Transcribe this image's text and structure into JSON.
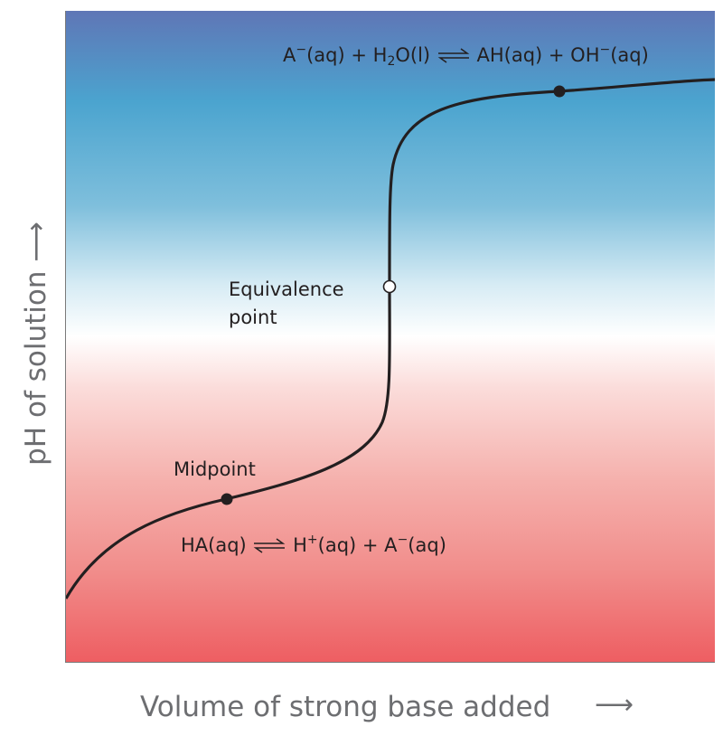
{
  "axes": {
    "x_label": "Volume of strong base added",
    "x_arrow": "⟶",
    "y_label": "pH of solution ⟶"
  },
  "annotations": {
    "equivalence_line1": "Equivalence",
    "equivalence_line2": "point",
    "midpoint": "Midpoint"
  },
  "equation_top": {
    "p1": "A",
    "p1_sup": "−",
    "p2": "(aq) + H",
    "p2_sub": "2",
    "p3": "O(l)",
    "p4": "AH(aq) + OH",
    "p4_sup": "−",
    "p5": "(aq)"
  },
  "equation_bottom": {
    "p1": "HA(aq)",
    "p2": "H",
    "p2_sup": "+",
    "p3": "(aq) + A",
    "p3_sup": "−",
    "p4": "(aq)"
  },
  "colors": {
    "top": "#5f76b6",
    "upper": "#4ba4cf",
    "middle": "#ffffff",
    "lower": "#f5b1ad",
    "bottom": "#ee5e62",
    "curve": "#231f20"
  }
}
